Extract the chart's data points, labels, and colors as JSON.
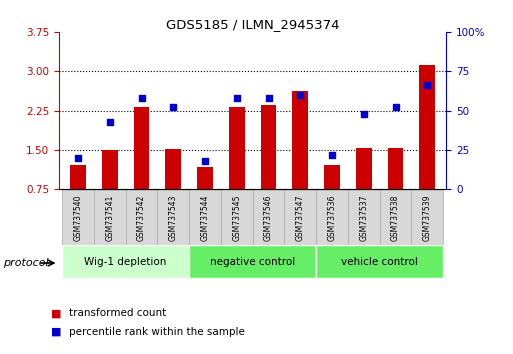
{
  "title": "GDS5185 / ILMN_2945374",
  "samples": [
    "GSM737540",
    "GSM737541",
    "GSM737542",
    "GSM737543",
    "GSM737544",
    "GSM737545",
    "GSM737546",
    "GSM737547",
    "GSM737536",
    "GSM737537",
    "GSM737538",
    "GSM737539"
  ],
  "transformed_count": [
    1.22,
    1.5,
    2.32,
    1.52,
    1.18,
    2.32,
    2.35,
    2.62,
    1.22,
    1.54,
    1.54,
    3.12
  ],
  "percentile_rank": [
    20,
    43,
    58,
    52,
    18,
    58,
    58,
    60,
    22,
    48,
    52,
    66
  ],
  "groups": [
    {
      "label": "Wig-1 depletion",
      "start": 0,
      "end": 4
    },
    {
      "label": "negative control",
      "start": 4,
      "end": 8
    },
    {
      "label": "vehicle control",
      "start": 8,
      "end": 12
    }
  ],
  "group_colors": [
    "#ccffcc",
    "#66ee66",
    "#66ee66"
  ],
  "ylim_left": [
    0.75,
    3.75
  ],
  "ylim_right": [
    0,
    100
  ],
  "yticks_left": [
    0.75,
    1.5,
    2.25,
    3.0,
    3.75
  ],
  "yticks_right": [
    0,
    25,
    50,
    75,
    100
  ],
  "bar_color": "#cc0000",
  "dot_color": "#0000cc",
  "bar_width": 0.5,
  "background_color": "#ffffff",
  "left_axis_color": "#cc0000",
  "right_axis_color": "#0000cc",
  "legend_items": [
    "transformed count",
    "percentile rank within the sample"
  ],
  "legend_colors": [
    "#cc0000",
    "#0000cc"
  ],
  "protocol_label": "protocol"
}
